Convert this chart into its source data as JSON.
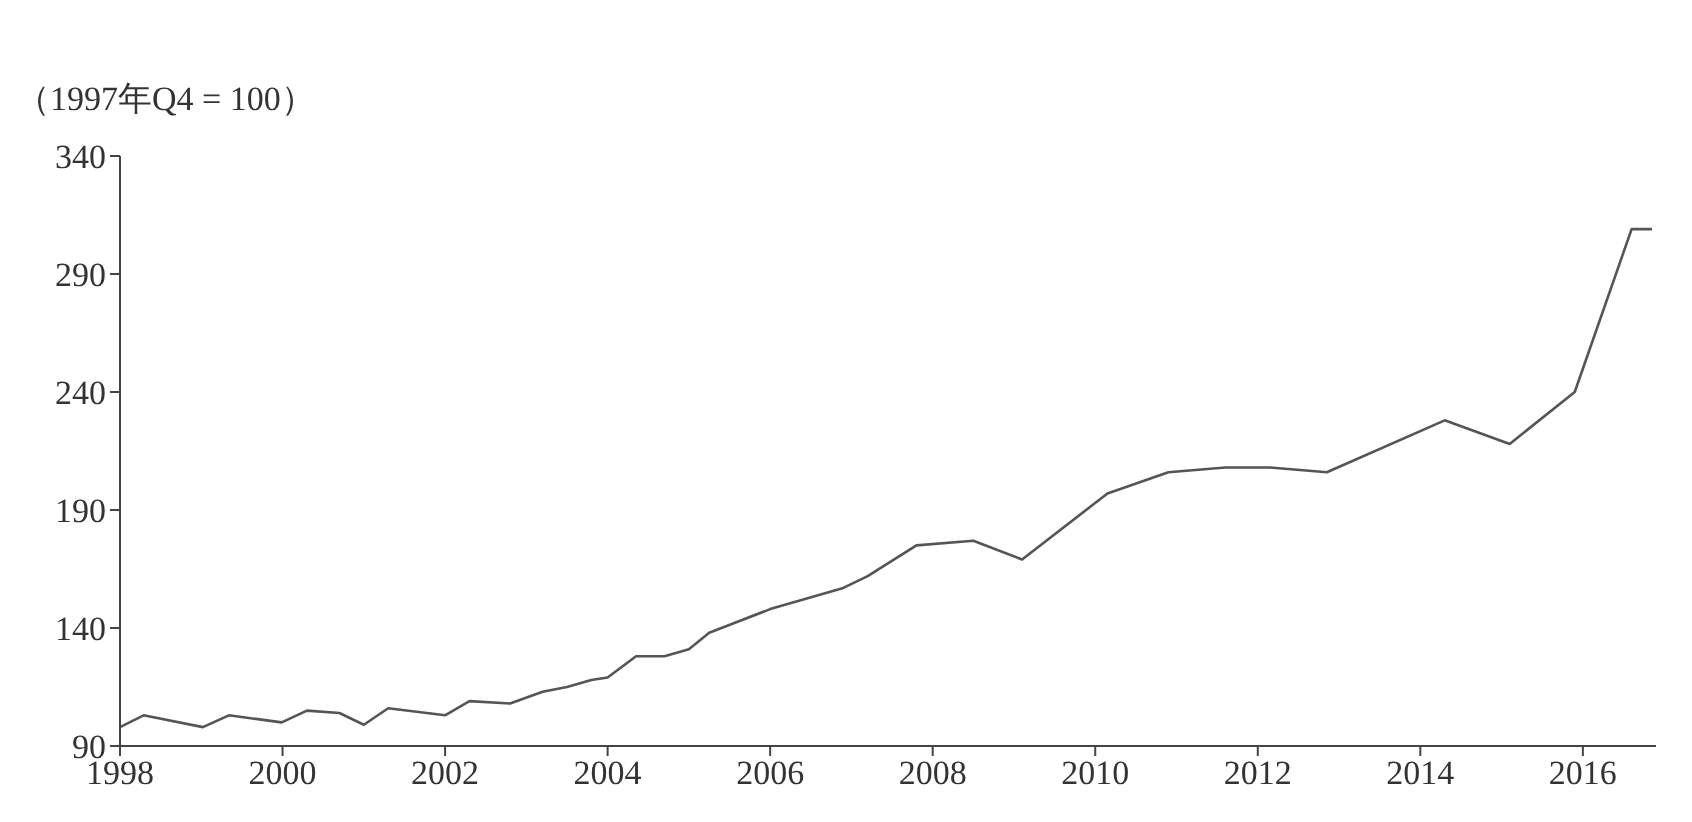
{
  "chart_data": {
    "type": "line",
    "ylabel": "（1997年Q4 = 100）",
    "x": [
      1998.0,
      1998.29,
      1999.02,
      1999.34,
      1999.99,
      2000.3,
      2000.7,
      2001.0,
      2001.3,
      2002.0,
      2002.3,
      2002.8,
      2003.2,
      2003.5,
      2003.8,
      2004.0,
      2004.35,
      2004.7,
      2005.0,
      2005.25,
      2006.0,
      2006.9,
      2007.2,
      2007.8,
      2008.5,
      2009.1,
      2010.15,
      2010.9,
      2011.6,
      2012.15,
      2012.85,
      2014.3,
      2015.1,
      2015.9,
      2016.6,
      2016.85
    ],
    "series": [
      {
        "color": "#555555",
        "values": [
          98,
          103,
          98,
          103,
          100,
          105,
          104,
          99,
          106,
          103,
          109,
          108,
          113,
          115,
          118,
          119,
          128,
          128,
          131,
          138,
          148,
          157,
          162,
          175,
          177,
          169,
          197,
          206,
          208,
          208,
          206,
          228,
          218,
          240,
          309,
          309
        ]
      }
    ],
    "xlim": [
      1998,
      2016.9
    ],
    "xticks": [
      1998,
      2000,
      2002,
      2004,
      2006,
      2008,
      2010,
      2012,
      2014,
      2016
    ],
    "ylim": [
      90,
      340
    ],
    "yticks": [
      90,
      140,
      190,
      240,
      290,
      340
    ],
    "grid": false,
    "marker": "none",
    "line_style": "solid"
  }
}
